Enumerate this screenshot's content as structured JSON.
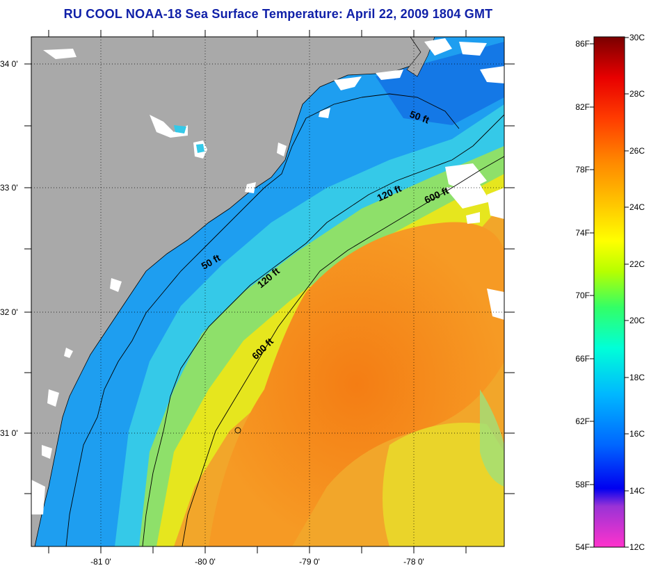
{
  "title": "RU COOL  NOAA-18  Sea Surface Temperature:  April 22, 2009 1804 GMT",
  "map": {
    "type": "sea-surface-temperature",
    "lon_ticks": [
      {
        "value": -81,
        "label": "-81 0'"
      },
      {
        "value": -80,
        "label": "-80 0'"
      },
      {
        "value": -79,
        "label": "-79 0'"
      },
      {
        "value": -78,
        "label": "-78 0'"
      }
    ],
    "lat_ticks": [
      {
        "value": 34,
        "label": "34 0'"
      },
      {
        "value": 33,
        "label": "33 0'"
      },
      {
        "value": 32,
        "label": "32 0'"
      },
      {
        "value": 31,
        "label": "31 0'"
      }
    ],
    "contour_labels": [
      {
        "id": "50ft-north",
        "text": "50 ft"
      },
      {
        "id": "120ft-north",
        "text": "120 ft"
      },
      {
        "id": "600ft-north",
        "text": "600 ft"
      },
      {
        "id": "50ft-mid",
        "text": "50 ft"
      },
      {
        "id": "120ft-mid",
        "text": "120 ft"
      },
      {
        "id": "600ft-mid",
        "text": "600 ft"
      }
    ],
    "colors": {
      "land": "#a9a9a9",
      "cloud": "#ffffff",
      "shelf_cold": "#1ea0f0",
      "warm": "#f08a1c"
    }
  },
  "colorbar": {
    "fahrenheit_labels": [
      "86F",
      "82F",
      "78F",
      "74F",
      "70F",
      "66F",
      "62F",
      "58F",
      "54F"
    ],
    "celsius_labels": [
      "30C",
      "28C",
      "26C",
      "24C",
      "22C",
      "20C",
      "18C",
      "16C",
      "14C",
      "12C"
    ]
  }
}
